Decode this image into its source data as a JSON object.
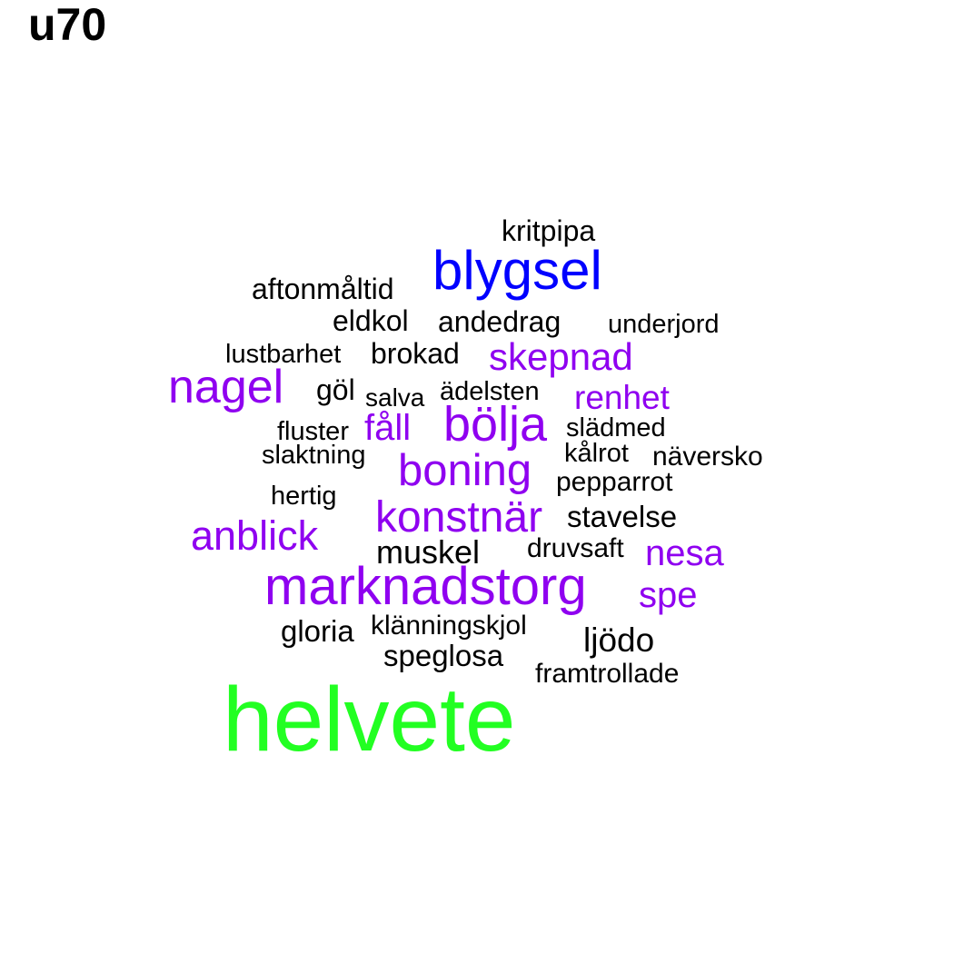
{
  "title": "u70",
  "colors": {
    "black": "#000000",
    "purple": "#8f00f0",
    "blue": "#0000ff",
    "green": "#22ff22"
  },
  "words": [
    {
      "text": "kritpipa",
      "color": "black"
    },
    {
      "text": "blygsel",
      "color": "blue"
    },
    {
      "text": "aftonmåltid",
      "color": "black"
    },
    {
      "text": "eldkol",
      "color": "black"
    },
    {
      "text": "andedrag",
      "color": "black"
    },
    {
      "text": "underjord",
      "color": "black"
    },
    {
      "text": "lustbarhet",
      "color": "black"
    },
    {
      "text": "brokad",
      "color": "black"
    },
    {
      "text": "skepnad",
      "color": "purple"
    },
    {
      "text": "nagel",
      "color": "purple"
    },
    {
      "text": "göl",
      "color": "black"
    },
    {
      "text": "salva",
      "color": "black"
    },
    {
      "text": "ädelsten",
      "color": "black"
    },
    {
      "text": "renhet",
      "color": "purple"
    },
    {
      "text": "fluster",
      "color": "black"
    },
    {
      "text": "fåll",
      "color": "purple"
    },
    {
      "text": "bölja",
      "color": "purple"
    },
    {
      "text": "slädmed",
      "color": "black"
    },
    {
      "text": "slaktning",
      "color": "black"
    },
    {
      "text": "kålrot",
      "color": "black"
    },
    {
      "text": "näversko",
      "color": "black"
    },
    {
      "text": "boning",
      "color": "purple"
    },
    {
      "text": "pepparrot",
      "color": "black"
    },
    {
      "text": "hertig",
      "color": "black"
    },
    {
      "text": "konstnär",
      "color": "purple"
    },
    {
      "text": "stavelse",
      "color": "black"
    },
    {
      "text": "anblick",
      "color": "purple"
    },
    {
      "text": "muskel",
      "color": "black"
    },
    {
      "text": "druvsaft",
      "color": "black"
    },
    {
      "text": "nesa",
      "color": "purple"
    },
    {
      "text": "marknadstorg",
      "color": "purple"
    },
    {
      "text": "spe",
      "color": "purple"
    },
    {
      "text": "gloria",
      "color": "black"
    },
    {
      "text": "klänningskjol",
      "color": "black"
    },
    {
      "text": "ljödo",
      "color": "black"
    },
    {
      "text": "speglosa",
      "color": "black"
    },
    {
      "text": "framtrollade",
      "color": "black"
    },
    {
      "text": "helvete",
      "color": "green"
    }
  ]
}
